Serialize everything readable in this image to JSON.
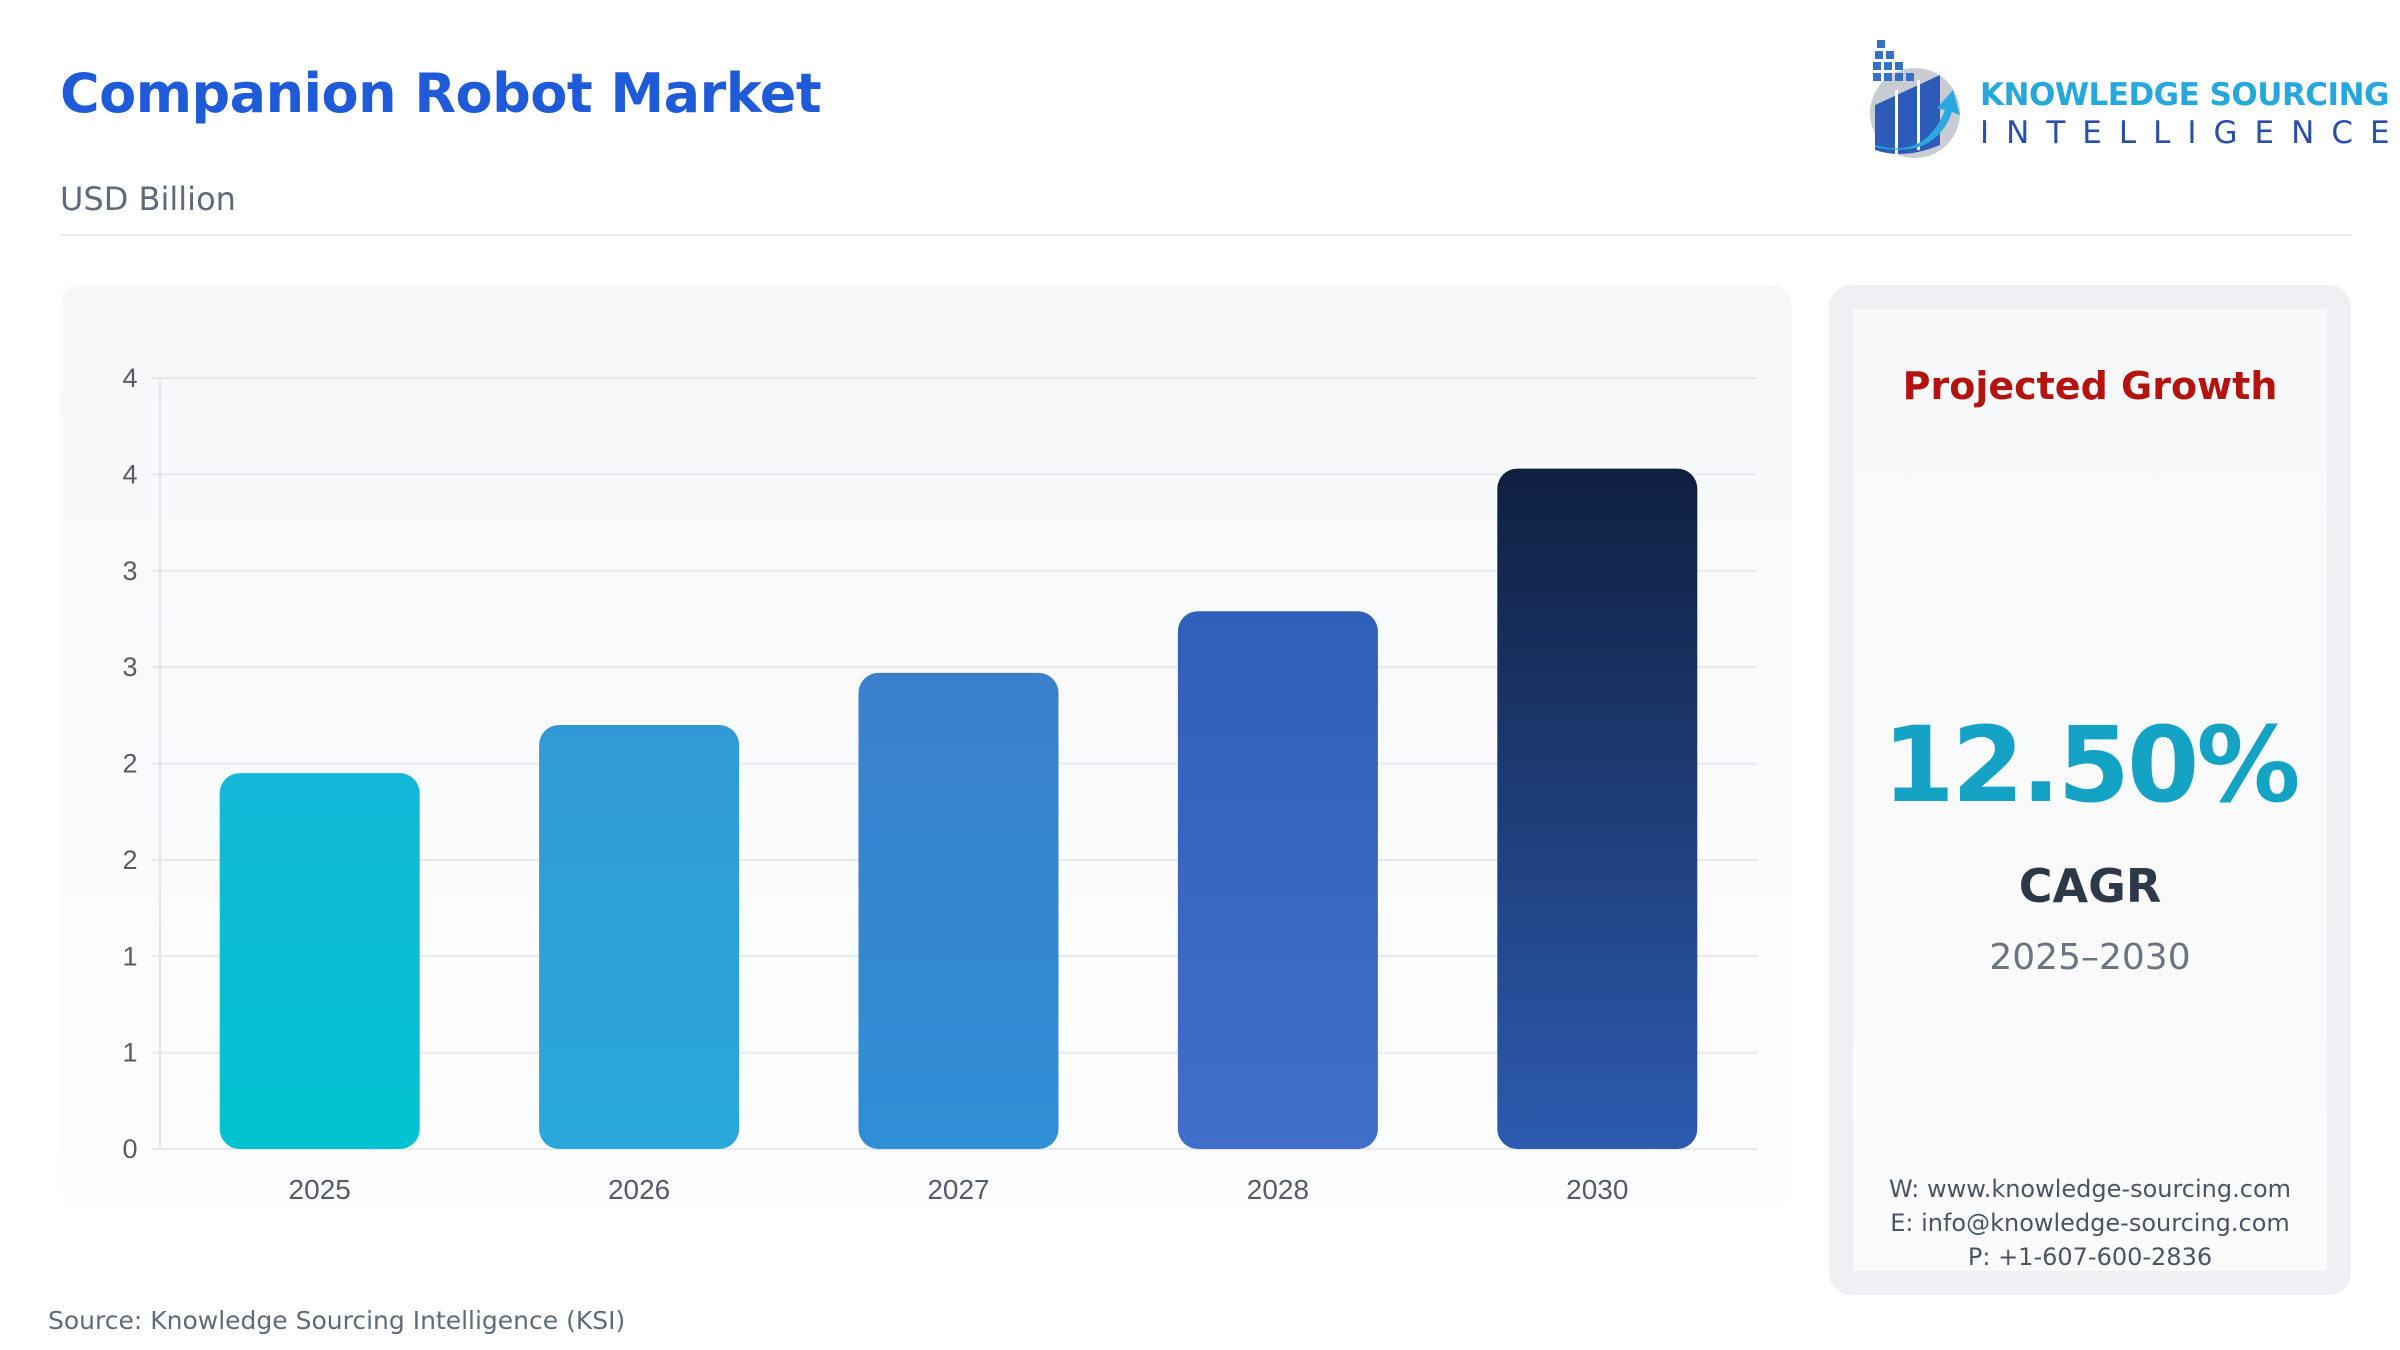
{
  "header": {
    "title": "Companion Robot Market",
    "subtitle": "USD Billion"
  },
  "logo": {
    "line1": "KNOWLEDGE SOURCING",
    "line2": "INTELLIGENCE"
  },
  "chart_data": {
    "type": "bar",
    "title": "",
    "xlabel": "",
    "ylabel": "",
    "categories": [
      "2025",
      "2026",
      "2027",
      "2028",
      "2030"
    ],
    "values": [
      1.95,
      2.2,
      2.47,
      2.79,
      3.53
    ],
    "ylim": [
      0,
      4
    ],
    "yticks": [
      0,
      0.5,
      1,
      1.5,
      2,
      2.5,
      3,
      3.5,
      4
    ],
    "ytick_labels": [
      "0",
      "1",
      "1",
      "2",
      "2",
      "3",
      "3",
      "4",
      "4"
    ],
    "grid": true,
    "bar_colors": [
      [
        "#14b8d8",
        "#00c2d0"
      ],
      [
        "#319ad6",
        "#2aa8dc"
      ],
      [
        "#3a7fcc",
        "#2f8fd6"
      ],
      [
        "#2f5fb8",
        "#3f6fc8"
      ],
      [
        "#0f1f3f",
        "#2d5bb0"
      ]
    ]
  },
  "panel": {
    "title": "Projected Growth",
    "value": "12.50%",
    "label": "CAGR",
    "period": "2025–2030",
    "website": "W: www.knowledge-sourcing.com",
    "email": "E: info@knowledge-sourcing.com",
    "phone": "P: +1-607-600-2836"
  },
  "footer": {
    "source": "Source: Knowledge Sourcing Intelligence (KSI)"
  }
}
